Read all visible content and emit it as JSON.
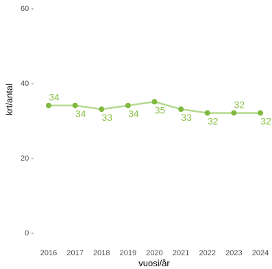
{
  "chart_data": {
    "type": "line",
    "x": [
      "2016",
      "2017",
      "2018",
      "2019",
      "2020",
      "2021",
      "2022",
      "2023",
      "2024"
    ],
    "series": [
      {
        "values": [
          34,
          34,
          33,
          34,
          35,
          33,
          32,
          32,
          32
        ],
        "data_labels": [
          "34",
          "34",
          "33",
          "34",
          "35",
          "33",
          "32",
          "32",
          "32"
        ],
        "label_side": [
          "above",
          "below",
          "below",
          "below",
          "below",
          "below",
          "below",
          "above",
          "below"
        ]
      }
    ],
    "xlabel": "vuosi/år",
    "ylabel": "krt/antal",
    "ylim": [
      0,
      60
    ],
    "yticks": [
      0,
      20,
      40,
      60
    ],
    "ytick_labels": [
      "0 -",
      "20 -",
      "40 -",
      "60 -"
    ],
    "grid": false,
    "colors": {
      "line": "#b5d98f",
      "point": "#7fb93e",
      "label": "#8cc04b"
    }
  }
}
